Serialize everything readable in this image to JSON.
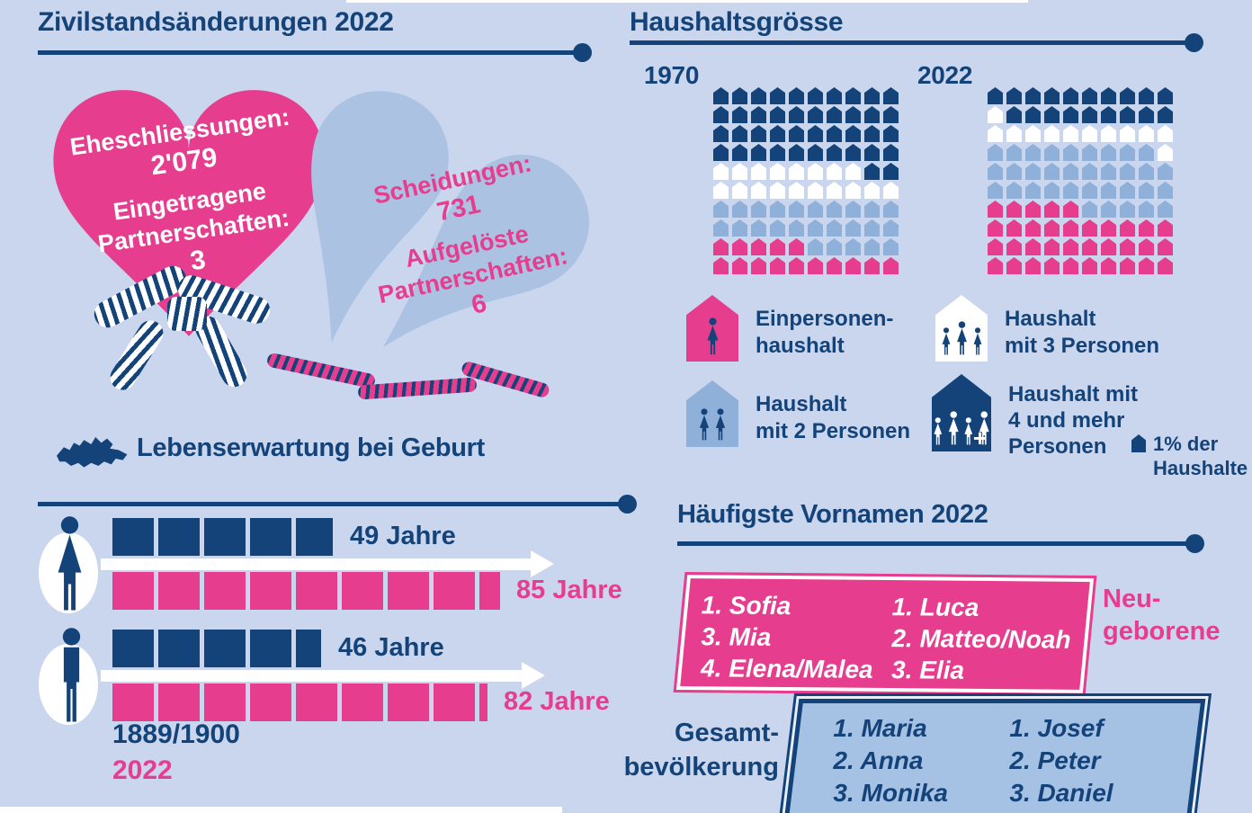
{
  "colors": {
    "navy": "#14437a",
    "pink": "#e63d8f",
    "light_blue": "#8fb0d9",
    "heart_blue": "#abc2e2",
    "box_blue": "#a5c2e4",
    "background": "#c9d6ed",
    "white": "#ffffff"
  },
  "zivilstand": {
    "title": "Zivilstandsänderungen 2022",
    "marriages_label": "Eheschliessungen:",
    "marriages_value": "2'079",
    "partnerships_label": "Eingetragene\nPartnerschaften:",
    "partnerships_value": "3",
    "divorces_label": "Scheidungen:",
    "divorces_value": "731",
    "dissolved_label": "Aufgelöste\nPartnerschaften:",
    "dissolved_value": "6"
  },
  "haushalt": {
    "title": "Haushaltsgrösse",
    "year_left": "1970",
    "year_right": "2022",
    "grid_1970": [
      "DDDDDDDDDD",
      "DDDDDDDDDD",
      "DDDDDDDDDD",
      "DDDDDDDDDD",
      "WWWWWWWWDD",
      "WWWWWWWWWW",
      "BBBBBBBBBB",
      "BBBBBBBBBB",
      "PPPPPBBBBB",
      "PPPPPPPPPP"
    ],
    "grid_2022": [
      "DDDDDDDDDD",
      "WDDDDDDDDD",
      "WWWWWWWWWW",
      "BBBBBBBBBW",
      "BBBBBBBBBB",
      "BBBBBBBBBB",
      "PPPPPBBBBB",
      "PPPPPPPPPP",
      "PPPPPPPPPP",
      "PPPPPPPPPP"
    ],
    "legend": [
      {
        "house": "pink",
        "persons": 1,
        "plus": false,
        "label": "Einpersonen-\nhaushalt"
      },
      {
        "house": "light_blue",
        "persons": 2,
        "plus": false,
        "label": "Haushalt\nmit 2 Personen"
      },
      {
        "house": "white",
        "persons": 3,
        "plus": false,
        "label": "Haushalt\nmit 3 Personen"
      },
      {
        "house": "navy",
        "persons": 4,
        "plus": true,
        "label": "Haushalt mit\n4 und mehr\nPersonen"
      }
    ],
    "unit_note": "1% der\nHaushalte"
  },
  "lebenserwartung": {
    "title": "Lebenserwartung bei Geburt",
    "years_per_segment": 10,
    "rows": [
      {
        "gender": "female",
        "old_value": 49,
        "old_label": "49 Jahre",
        "new_value": 85,
        "new_label": "85 Jahre"
      },
      {
        "gender": "male",
        "old_value": 46,
        "old_label": "46 Jahre",
        "new_value": 82,
        "new_label": "82 Jahre"
      }
    ],
    "legend_old": "1889/1900",
    "legend_new": "2022"
  },
  "vornamen": {
    "title": "Häufigste Vornamen 2022",
    "newborn": {
      "label": "Neu-\ngeborene",
      "girls": [
        "1. Sofia",
        "3. Mia",
        "4. Elena/Malea"
      ],
      "boys": [
        "1. Luca",
        "2. Matteo/Noah",
        "3. Elia"
      ]
    },
    "population": {
      "label": "Gesamt-\nbevölkerung",
      "women": [
        "1. Maria",
        "2. Anna",
        "3. Monika"
      ],
      "men": [
        "1. Josef",
        "2. Peter",
        "3. Daniel"
      ]
    }
  },
  "chart_data": [
    {
      "type": "table",
      "title": "Zivilstandsänderungen 2022",
      "rows": [
        [
          "Eheschliessungen",
          "2'079"
        ],
        [
          "Eingetragene Partnerschaften",
          "3"
        ],
        [
          "Scheidungen",
          "731"
        ],
        [
          "Aufgelöste Partnerschaften",
          "6"
        ]
      ]
    },
    {
      "type": "bar",
      "title": "Haushaltsgrösse (1 Haus-Symbol = 1% der Haushalte)",
      "categories": [
        "Einpersonenhaushalt",
        "Haushalt mit 2 Personen",
        "Haushalt mit 3 Personen",
        "Haushalt mit 4 und mehr Personen"
      ],
      "series": [
        {
          "name": "1970",
          "values": [
            15,
            25,
            18,
            42
          ]
        },
        {
          "name": "2022",
          "values": [
            35,
            34,
            12,
            19
          ]
        }
      ],
      "unit": "% der Haushalte",
      "ylim": [
        0,
        100
      ],
      "legend_position": "below"
    },
    {
      "type": "bar",
      "title": "Lebenserwartung bei Geburt",
      "categories": [
        "Frauen",
        "Männer"
      ],
      "series": [
        {
          "name": "1889/1900",
          "values": [
            49,
            46
          ]
        },
        {
          "name": "2022",
          "values": [
            85,
            82
          ]
        }
      ],
      "unit": "Jahre",
      "ylim": [
        0,
        90
      ],
      "note": "1 Segment = 10 Jahre"
    },
    {
      "type": "table",
      "title": "Häufigste Vornamen 2022",
      "rows": [
        [
          "Neugeborene Mädchen",
          "1. Sofia, 3. Mia, 4. Elena/Malea"
        ],
        [
          "Neugeborene Knaben",
          "1. Luca, 2. Matteo/Noah, 3. Elia"
        ],
        [
          "Gesamtbevölkerung Frauen",
          "1. Maria, 2. Anna, 3. Monika"
        ],
        [
          "Gesamtbevölkerung Männer",
          "1. Josef, 2. Peter, 3. Daniel"
        ]
      ]
    }
  ]
}
